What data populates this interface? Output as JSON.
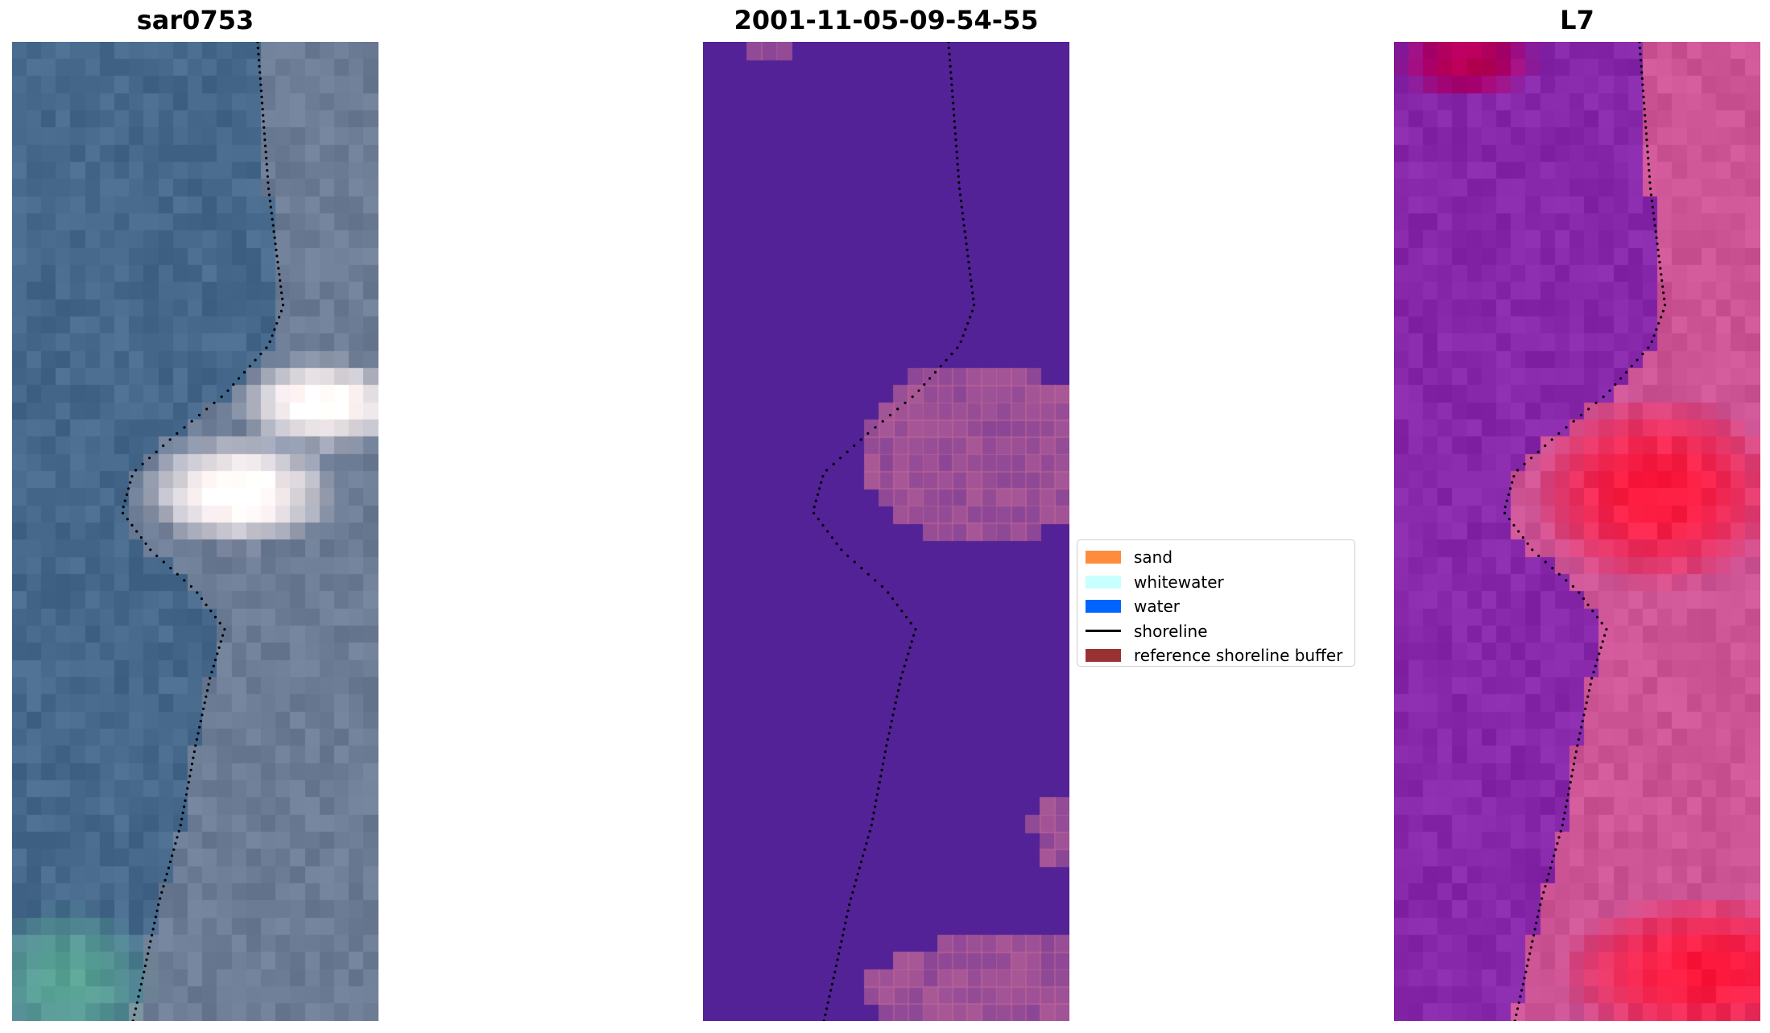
{
  "panels": [
    {
      "title": "sar0753",
      "kind": "rgb-image"
    },
    {
      "title": "2001-11-05-09-54-55",
      "kind": "classified-image"
    },
    {
      "title": "L7",
      "kind": "index-image"
    }
  ],
  "legend": {
    "items": [
      {
        "label": "sand",
        "type": "patch",
        "color": "#ff8c3c"
      },
      {
        "label": "whitewater",
        "type": "patch",
        "color": "#c8ffff"
      },
      {
        "label": "water",
        "type": "patch",
        "color": "#0064ff"
      },
      {
        "label": "shoreline",
        "type": "line",
        "color": "#000000"
      },
      {
        "label": "reference shoreline buffer",
        "type": "patch",
        "color": "#993333"
      }
    ]
  },
  "colors": {
    "classified_background": "#522296",
    "buffer_overlay": "#b86296",
    "shoreline_dots": "#000000"
  }
}
